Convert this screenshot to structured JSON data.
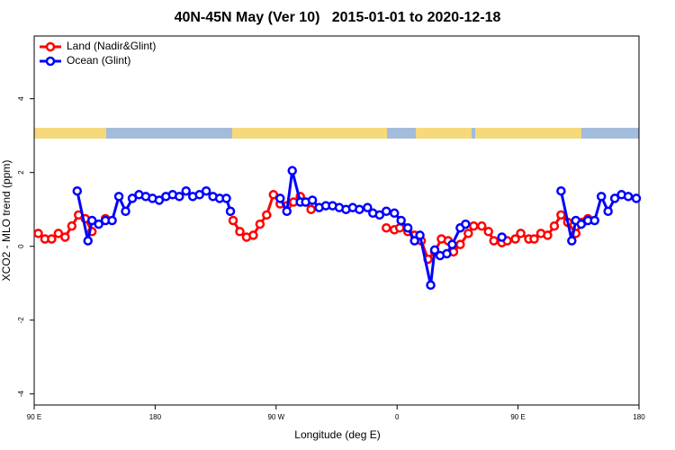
{
  "chart_data": {
    "type": "line",
    "title": "40N-45N May (Ver 10)   2015-01-01 to 2020-12-18",
    "x_label": "Longitude (deg E)",
    "y_label": "XCO2 - MLO trend (ppm)",
    "xlim": [
      90,
      540
    ],
    "xticks": [
      {
        "value": 90,
        "label": "90 E"
      },
      180,
      {
        "value": 270,
        "label": "90 W"
      },
      {
        "value": 360,
        "label": "0"
      },
      {
        "value": 450,
        "label": "90 E"
      },
      {
        "value": 540,
        "label": "180"
      }
    ],
    "ylim": [
      -4.3,
      5.7
    ],
    "yticks": [
      -4,
      -2,
      0,
      2,
      4
    ],
    "legend": "top-left",
    "series": [
      {
        "name": "Land (Nadir&Glint)",
        "color": "#ff0000",
        "x": [
          93,
          98,
          103,
          108,
          113,
          118,
          123,
          128,
          133,
          138,
          143,
          190,
          238,
          243,
          248,
          253,
          258,
          263,
          268,
          273,
          278,
          283,
          288,
          292,
          296,
          325,
          352,
          358,
          362,
          368,
          373,
          378,
          383,
          388,
          393,
          398,
          402,
          407,
          413,
          417,
          423,
          428,
          432,
          438,
          442,
          448,
          452,
          458,
          462,
          467,
          472,
          477,
          482,
          487,
          493,
          498,
          502
        ],
        "values": [
          0.35,
          0.2,
          0.2,
          0.35,
          0.25,
          0.55,
          0.85,
          0.75,
          0.4,
          null,
          0.75,
          null,
          0.7,
          0.4,
          0.25,
          0.3,
          0.6,
          0.85,
          1.4,
          1.15,
          1.1,
          1.2,
          1.35,
          1.2,
          1.0,
          null,
          0.5,
          0.45,
          0.5,
          0.4,
          0.3,
          0.15,
          -0.35,
          -0.15,
          0.2,
          0.15,
          -0.15,
          0.05,
          0.35,
          0.55,
          0.55,
          0.4,
          0.15,
          0.1,
          0.15,
          0.2,
          0.35,
          0.2,
          0.2,
          0.35,
          0.3,
          0.55,
          0.85,
          0.65,
          0.35,
          0.65,
          0.75
        ]
      },
      {
        "name": "Ocean (Glint)",
        "color": "#0000ff",
        "x": [
          122,
          130,
          133,
          138,
          143,
          148,
          153,
          158,
          163,
          168,
          173,
          178,
          183,
          188,
          193,
          198,
          203,
          208,
          213,
          218,
          223,
          228,
          233,
          236,
          255,
          273,
          278,
          282,
          288,
          292,
          297,
          302,
          307,
          312,
          317,
          322,
          327,
          332,
          338,
          342,
          347,
          352,
          358,
          363,
          368,
          373,
          377,
          385,
          388,
          392,
          397,
          401,
          407,
          411,
          425,
          438,
          460,
          482,
          490,
          493,
          497,
          502,
          507,
          512,
          517,
          522,
          527,
          532,
          538
        ],
        "values": [
          1.5,
          0.15,
          0.7,
          0.6,
          0.7,
          0.7,
          1.35,
          0.95,
          1.3,
          1.4,
          1.35,
          1.3,
          1.25,
          1.35,
          1.4,
          1.35,
          1.5,
          1.35,
          1.4,
          1.5,
          1.35,
          1.3,
          1.3,
          0.95,
          null,
          1.3,
          0.95,
          2.05,
          1.2,
          1.2,
          1.25,
          1.05,
          1.1,
          1.1,
          1.05,
          1.0,
          1.05,
          1.0,
          1.05,
          0.9,
          0.85,
          0.95,
          0.9,
          0.7,
          0.5,
          0.15,
          0.3,
          -1.05,
          -0.1,
          -0.25,
          -0.2,
          0.05,
          0.5,
          0.6,
          null,
          0.25,
          null,
          1.5,
          0.15,
          0.7,
          0.6,
          0.7,
          0.7,
          1.35,
          0.95,
          1.3,
          1.4,
          1.35,
          1.3
        ]
      }
    ]
  }
}
